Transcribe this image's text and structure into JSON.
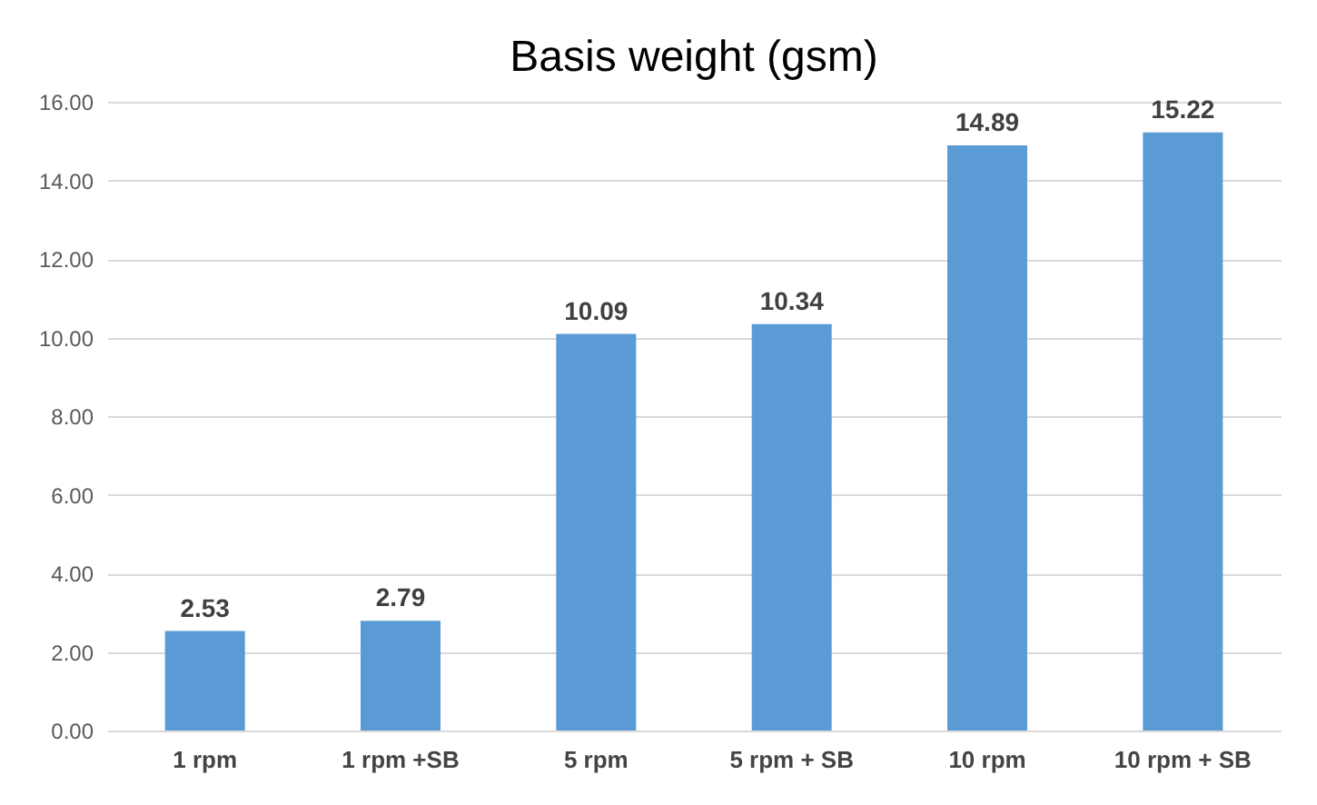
{
  "chart_data": {
    "type": "bar",
    "title": "Basis weight (gsm)",
    "categories": [
      "1 rpm",
      "1 rpm +SB",
      "5 rpm",
      "5 rpm + SB",
      "10 rpm",
      "10 rpm + SB"
    ],
    "values": [
      2.53,
      2.79,
      10.09,
      10.34,
      14.89,
      15.22
    ],
    "color": "#5b9bd5",
    "ylim": [
      0,
      16
    ],
    "yticks": [
      {
        "value": 0,
        "label": "0.00"
      },
      {
        "value": 2,
        "label": "2.00"
      },
      {
        "value": 4,
        "label": "4.00"
      },
      {
        "value": 6,
        "label": "6.00"
      },
      {
        "value": 8,
        "label": "8.00"
      },
      {
        "value": 10,
        "label": "10.00"
      },
      {
        "value": 12,
        "label": "12.00"
      },
      {
        "value": 14,
        "label": "14.00"
      },
      {
        "value": 16,
        "label": "16.00"
      }
    ],
    "grid": "y",
    "data_labels": true
  }
}
